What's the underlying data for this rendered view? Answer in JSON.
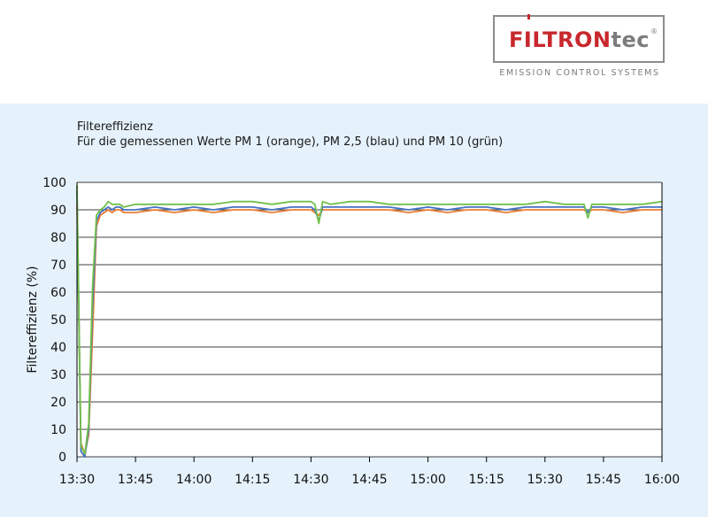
{
  "logo": {
    "brand_main": "FILTRON",
    "brand_suffix": "tec",
    "registered": "®",
    "tagline": "EMISSION CONTROL SYSTEMS",
    "colors": {
      "red": "#c8282d",
      "gray": "#7c7c7c"
    }
  },
  "chart_data": {
    "type": "line",
    "title": "Filtereffizienz",
    "subtitle": "Für die gemessenen Werte PM 1 (orange), PM 2,5 (blau) und PM 10 (grün)",
    "ylabel": "Filtereffizienz (%)",
    "xlabel": "",
    "ylim": [
      0,
      100
    ],
    "yticks": [
      0,
      10,
      20,
      30,
      40,
      50,
      60,
      70,
      80,
      90,
      100
    ],
    "xlim": [
      "13:30",
      "16:00"
    ],
    "xticks": [
      "13:30",
      "13:45",
      "14:00",
      "14:15",
      "14:30",
      "14:45",
      "15:00",
      "15:15",
      "15:30",
      "15:45",
      "16:00"
    ],
    "grid": "horizontal",
    "legend": "none",
    "series": [
      {
        "color": "#ed7d31",
        "x": [
          "13:30",
          "13:31",
          "13:32",
          "13:33",
          "13:34",
          "13:35",
          "13:36",
          "13:37",
          "13:38",
          "13:39",
          "13:40",
          "13:41",
          "13:42",
          "13:45",
          "13:50",
          "13:55",
          "14:00",
          "14:05",
          "14:10",
          "14:15",
          "14:20",
          "14:25",
          "14:30",
          "14:31",
          "14:32",
          "14:33",
          "14:35",
          "14:40",
          "14:45",
          "14:50",
          "14:55",
          "15:00",
          "15:05",
          "15:10",
          "15:15",
          "15:20",
          "15:25",
          "15:30",
          "15:35",
          "15:40",
          "15:41",
          "15:42",
          "15:45",
          "15:50",
          "15:55",
          "16:00"
        ],
        "values": [
          92,
          5,
          1,
          8,
          45,
          84,
          88,
          89,
          90,
          89,
          90,
          90,
          89,
          89,
          90,
          89,
          90,
          89,
          90,
          90,
          89,
          90,
          90,
          89,
          88,
          90,
          90,
          90,
          90,
          90,
          89,
          90,
          89,
          90,
          90,
          89,
          90,
          90,
          90,
          90,
          89,
          90,
          90,
          89,
          90,
          90
        ]
      },
      {
        "color": "#4472c4",
        "x": [
          "13:30",
          "13:31",
          "13:32",
          "13:33",
          "13:34",
          "13:35",
          "13:36",
          "13:37",
          "13:38",
          "13:39",
          "13:40",
          "13:41",
          "13:42",
          "13:45",
          "13:50",
          "13:55",
          "14:00",
          "14:05",
          "14:10",
          "14:15",
          "14:20",
          "14:25",
          "14:30",
          "14:31",
          "14:32",
          "14:33",
          "14:35",
          "14:40",
          "14:45",
          "14:50",
          "14:55",
          "15:00",
          "15:05",
          "15:10",
          "15:15",
          "15:20",
          "15:25",
          "15:30",
          "15:35",
          "15:40",
          "15:41",
          "15:42",
          "15:45",
          "15:50",
          "15:55",
          "16:00"
        ],
        "values": [
          97,
          2,
          0,
          10,
          55,
          86,
          89,
          90,
          91,
          90,
          91,
          91,
          90,
          90,
          91,
          90,
          91,
          90,
          91,
          91,
          90,
          91,
          91,
          90,
          86,
          91,
          91,
          91,
          91,
          91,
          90,
          91,
          90,
          91,
          91,
          90,
          91,
          91,
          91,
          91,
          89,
          91,
          91,
          90,
          91,
          91
        ]
      },
      {
        "color": "#70c04a",
        "x": [
          "13:30",
          "13:31",
          "13:32",
          "13:33",
          "13:34",
          "13:35",
          "13:36",
          "13:37",
          "13:38",
          "13:39",
          "13:40",
          "13:41",
          "13:42",
          "13:45",
          "13:50",
          "13:55",
          "14:00",
          "14:05",
          "14:10",
          "14:15",
          "14:20",
          "14:25",
          "14:30",
          "14:31",
          "14:32",
          "14:33",
          "14:35",
          "14:40",
          "14:45",
          "14:50",
          "14:55",
          "15:00",
          "15:05",
          "15:10",
          "15:15",
          "15:20",
          "15:25",
          "15:30",
          "15:35",
          "15:40",
          "15:41",
          "15:42",
          "15:45",
          "15:50",
          "15:55",
          "16:00"
        ],
        "values": [
          99,
          4,
          1,
          12,
          62,
          88,
          90,
          91,
          93,
          92,
          92,
          92,
          91,
          92,
          92,
          92,
          92,
          92,
          93,
          93,
          92,
          93,
          93,
          92,
          85,
          93,
          92,
          93,
          93,
          92,
          92,
          92,
          92,
          92,
          92,
          92,
          92,
          93,
          92,
          92,
          87,
          92,
          92,
          92,
          92,
          93
        ]
      }
    ]
  }
}
